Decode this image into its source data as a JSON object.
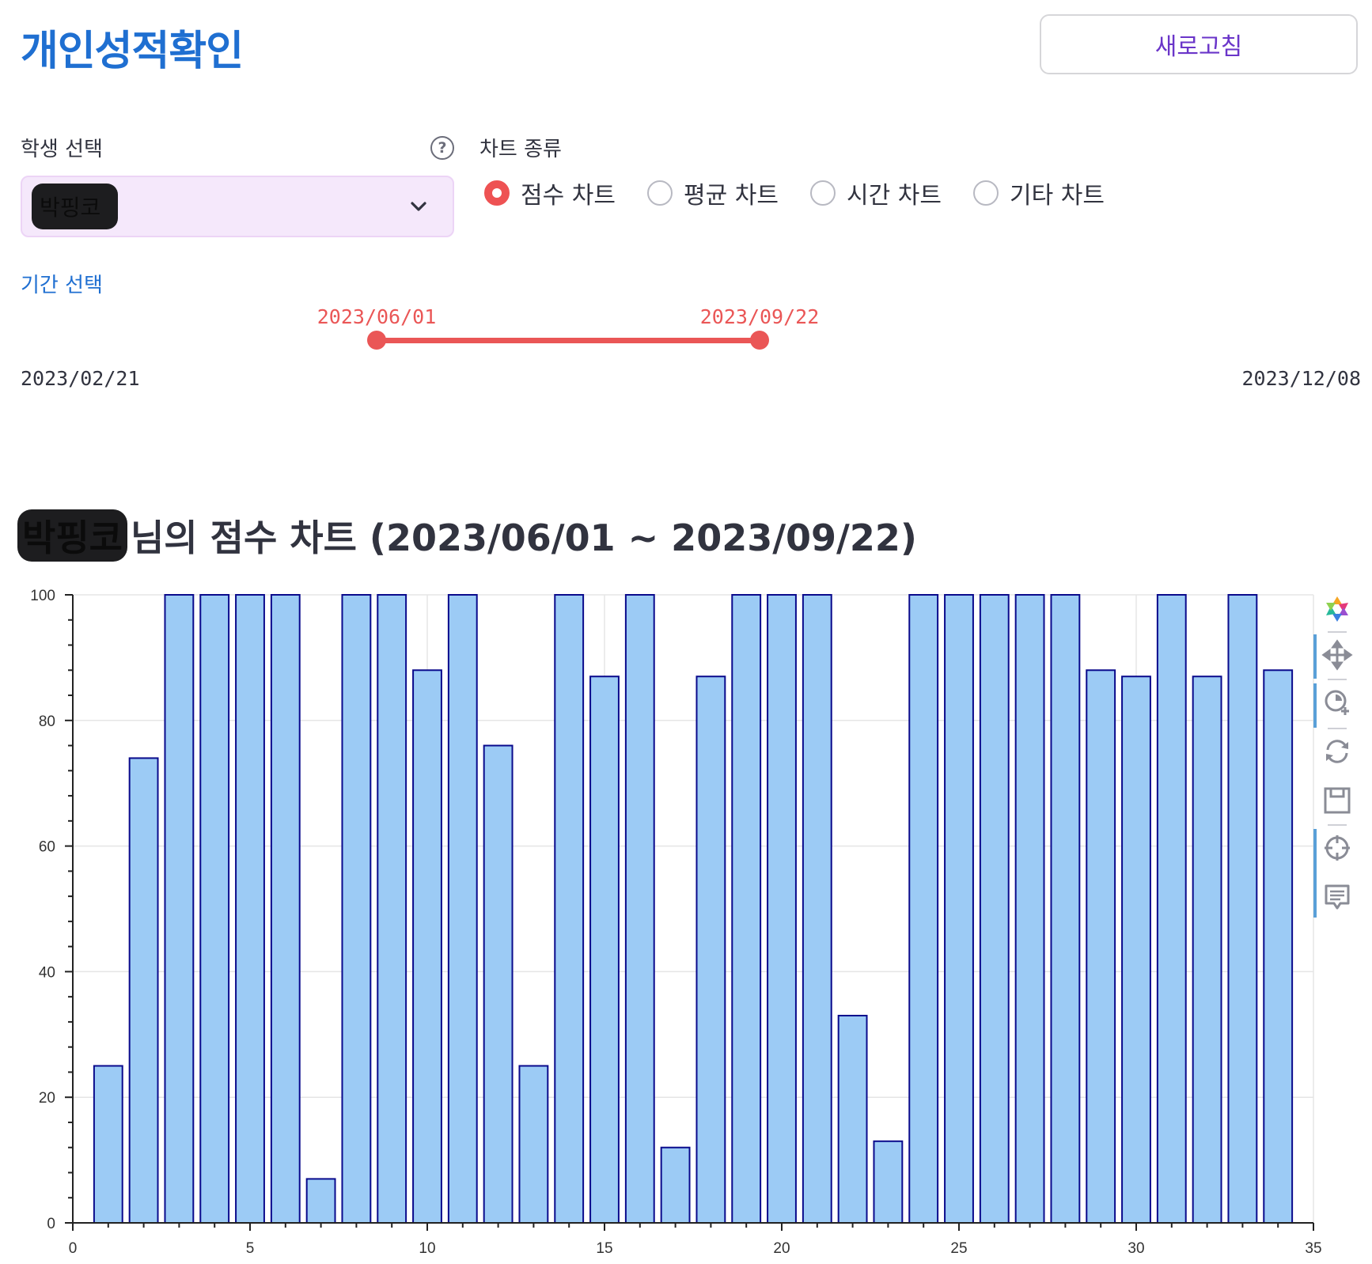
{
  "header": {
    "title": "개인성적확인",
    "refresh_label": "새로고침"
  },
  "student": {
    "label": "학생 선택",
    "help_icon": "?",
    "selected": "박핑코"
  },
  "chart_type": {
    "label": "차트 종류",
    "options": [
      {
        "label": "점수 차트",
        "checked": true
      },
      {
        "label": "평균 차트",
        "checked": false
      },
      {
        "label": "시간 차트",
        "checked": false
      },
      {
        "label": "기타 차트",
        "checked": false
      }
    ]
  },
  "period": {
    "label": "기간 선택",
    "selected_start": "2023/06/01",
    "selected_end": "2023/09/22",
    "range_min": "2023/02/21",
    "range_max": "2023/12/08"
  },
  "chart_heading": {
    "name": "박핑코",
    "text": "님의 점수 차트 (2023/06/01 ~ 2023/09/22)"
  },
  "chart_data": {
    "type": "bar",
    "x": [
      1,
      2,
      3,
      4,
      5,
      6,
      7,
      8,
      9,
      10,
      11,
      12,
      13,
      14,
      15,
      16,
      17,
      18,
      19,
      20,
      21,
      22,
      23,
      24,
      25,
      26,
      27,
      28,
      29,
      30,
      31,
      32,
      33,
      34
    ],
    "values": [
      25,
      74,
      100,
      100,
      100,
      100,
      7,
      100,
      100,
      88,
      100,
      76,
      25,
      100,
      87,
      100,
      12,
      87,
      100,
      100,
      100,
      33,
      13,
      100,
      100,
      100,
      100,
      100,
      88,
      87,
      100,
      87,
      100,
      88
    ],
    "xlim": [
      0,
      35
    ],
    "ylim": [
      0,
      100
    ],
    "x_ticks": [
      0,
      5,
      10,
      15,
      20,
      25,
      30,
      35
    ],
    "y_ticks": [
      0,
      20,
      40,
      60,
      80,
      100
    ],
    "grid": true,
    "bar_fill": "#9ccbf5",
    "bar_stroke": "#0a0a8c"
  },
  "toolbar": {
    "tools": [
      "bokeh-logo-icon",
      "pan-icon",
      "wheel-zoom-icon",
      "reset-icon",
      "save-icon",
      "crosshair-icon",
      "hover-icon"
    ]
  },
  "colors": {
    "accent_blue": "#1f6fd1",
    "accent_red": "#ea5656",
    "button_text": "#6a35c9"
  }
}
